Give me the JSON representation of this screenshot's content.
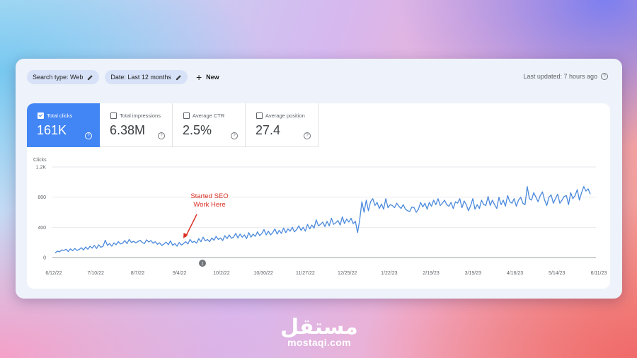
{
  "toolbar": {
    "chips": [
      {
        "label": "Search type: Web",
        "icon": "pencil-icon"
      },
      {
        "label": "Date: Last 12 months",
        "icon": "pencil-icon"
      }
    ],
    "new_label": "New",
    "last_updated": "Last updated: 7 hours ago"
  },
  "metrics": [
    {
      "label": "Total clicks",
      "value": "161K",
      "active": true
    },
    {
      "label": "Total impressions",
      "value": "6.38M",
      "active": false
    },
    {
      "label": "Average CTR",
      "value": "2.5%",
      "active": false
    },
    {
      "label": "Average position",
      "value": "27.4",
      "active": false
    }
  ],
  "annotation": {
    "line1": "Started SEO",
    "line2": "Work Here",
    "color": "#d93025",
    "marker": "1"
  },
  "colors": {
    "accent": "#4285f4",
    "line": "#4a89dc"
  },
  "watermark": {
    "arabic": "مستقل",
    "url": "mostaqi.com"
  },
  "chart_data": {
    "type": "line",
    "ylabel": "Clicks",
    "ylim": [
      0,
      1200
    ],
    "yticks": [
      "0",
      "400",
      "800",
      "1.2K"
    ],
    "xticks": [
      "6/12/22",
      "7/10/22",
      "8/7/22",
      "9/4/22",
      "10/2/22",
      "10/30/22",
      "11/27/22",
      "12/25/22",
      "1/22/23",
      "2/19/23",
      "3/19/23",
      "4/16/23",
      "5/14/23",
      "6/11/23"
    ],
    "grid": true,
    "series": [
      {
        "x_start": "6/12/22",
        "x_end": "6/11/23",
        "values": [
          60,
          85,
          75,
          100,
          95,
          110,
          80,
          115,
          90,
          120,
          95,
          105,
          130,
          100,
          140,
          110,
          150,
          125,
          160,
          120,
          170,
          135,
          150,
          230,
          160,
          185,
          150,
          195,
          170,
          210,
          180,
          190,
          225,
          185,
          240,
          200,
          215,
          195,
          210,
          230,
          200,
          185,
          235,
          205,
          225,
          190,
          210,
          175,
          195,
          160,
          180,
          205,
          170,
          220,
          160,
          185,
          150,
          200,
          165,
          185,
          210,
          180,
          240,
          200,
          215,
          190,
          250,
          210,
          270,
          220,
          240,
          210,
          260,
          230,
          280,
          240,
          260,
          225,
          290,
          250,
          300,
          255,
          270,
          320,
          260,
          310,
          270,
          300,
          250,
          330,
          270,
          310,
          280,
          340,
          290,
          320,
          370,
          300,
          350,
          300,
          330,
          380,
          310,
          360,
          320,
          390,
          330,
          380,
          350,
          400,
          340,
          370,
          420,
          360,
          400,
          350,
          440,
          380,
          430,
          390,
          500,
          420,
          440,
          470,
          410,
          480,
          420,
          520,
          440,
          460,
          490,
          430,
          540,
          450,
          510,
          470,
          520,
          450,
          480,
          330,
          500,
          740,
          600,
          760,
          620,
          740,
          780,
          690,
          730,
          650,
          710,
          640,
          780,
          660,
          700,
          690,
          660,
          720,
          680,
          650,
          700,
          640,
          620,
          610,
          670,
          660,
          600,
          640,
          730,
          670,
          720,
          640,
          730,
          680,
          760,
          700,
          780,
          690,
          720,
          760,
          700,
          680,
          730,
          650,
          740,
          720,
          780,
          660,
          750,
          700,
          620,
          690,
          780,
          640,
          700,
          650,
          760,
          700,
          690,
          810,
          690,
          760,
          700,
          650,
          800,
          700,
          760,
          680,
          820,
          740,
          720,
          780,
          680,
          760,
          800,
          720,
          700,
          940,
          780,
          760,
          860,
          800,
          740,
          820,
          870,
          760,
          690,
          800,
          830,
          720,
          780,
          840,
          720,
          760,
          810,
          820,
          700,
          860,
          780,
          820,
          900,
          760,
          860,
          940,
          880,
          910,
          840
        ]
      }
    ]
  }
}
